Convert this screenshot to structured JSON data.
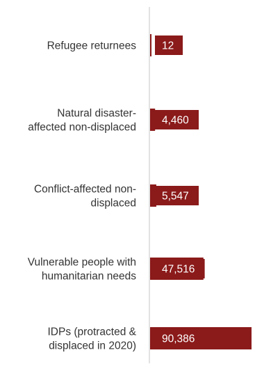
{
  "chart_data": {
    "type": "bar",
    "orientation": "horizontal",
    "categories": [
      [
        "Refugee returnees"
      ],
      [
        "Natural disaster-",
        "affected non-displaced"
      ],
      [
        "Conflict-affected non-",
        "displaced"
      ],
      [
        "Vulnerable people with",
        "humanitarian needs"
      ],
      [
        "IDPs (protracted &",
        "displaced in 2020)"
      ]
    ],
    "values": [
      12,
      4460,
      5547,
      47516,
      90386
    ],
    "value_labels": [
      "12",
      "4,460",
      "5,547",
      "47,516",
      "90,386"
    ],
    "xlim": [
      0,
      90386
    ],
    "title": "",
    "xlabel": "",
    "ylabel": "",
    "grid": false,
    "legend": "none",
    "colors": {
      "bar": "#8B1A1A",
      "label_box": "#8B1A1A",
      "axis": "#d9d9d9",
      "text": "#333333"
    }
  }
}
